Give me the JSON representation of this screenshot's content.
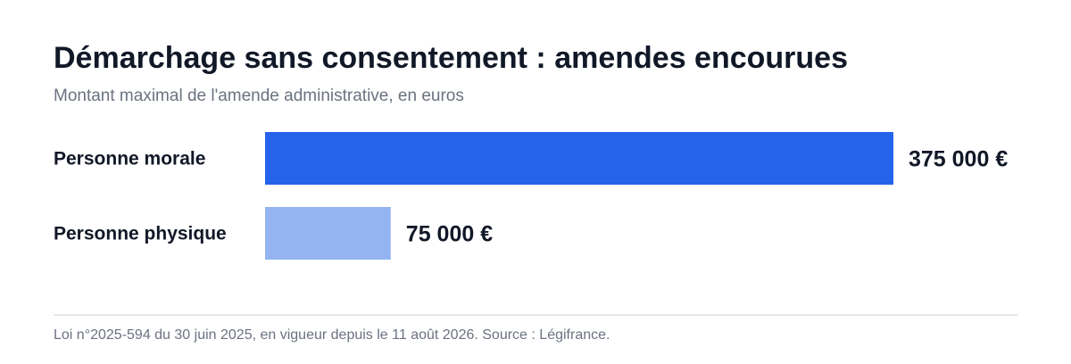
{
  "chart_data": {
    "type": "bar",
    "orientation": "horizontal",
    "title": "Démarchage sans consentement : amendes encourues",
    "subtitle": "Montant maximal de l'amende administrative, en euros",
    "categories": [
      "Personne morale",
      "Personne physique"
    ],
    "values": [
      375000,
      75000
    ],
    "value_labels": [
      "375 000 €",
      "75 000 €"
    ],
    "colors": [
      "#2563eb",
      "#93b4f1"
    ],
    "xlim": [
      0,
      375000
    ],
    "grid": false,
    "legend": "none"
  },
  "footer": {
    "note": "Loi n°2025-594 du 30 juin 2025, en vigueur depuis le 11 août 2026. Source : Légifrance."
  }
}
